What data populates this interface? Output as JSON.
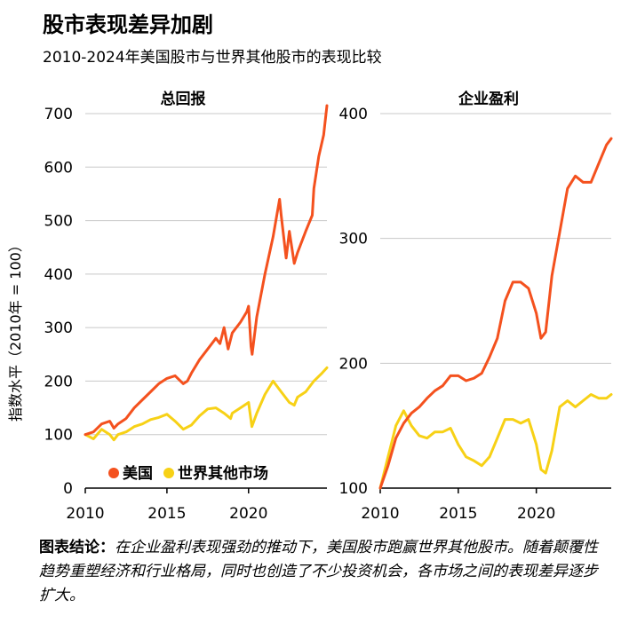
{
  "title": "股市表现差异加剧",
  "subtitle": "2010-2024年美国股市与世界其他股市的表现比较",
  "y_axis_label": "指数水平（2010年 = 100）",
  "legend": [
    {
      "label": "美国",
      "color": "#f4511e"
    },
    {
      "label": "世界其他市场",
      "color": "#f7d116"
    }
  ],
  "conclusion": {
    "lead": "图表结论：",
    "text": "在企业盈利表现强劲的推动下，美国股市跑赢世界其他股市。随着颠覆性趋势重塑经济和行业格局，同时也创造了不少投资机会，各市场之间的表现差异逐步扩大。"
  },
  "colors": {
    "us": "#f4511e",
    "world": "#f7d116",
    "grid": "#c8c8c8",
    "axis": "#000000"
  },
  "chart_data": [
    {
      "type": "line",
      "title": "总回报",
      "ylim": [
        0,
        700
      ],
      "yticks": [
        0,
        100,
        200,
        300,
        400,
        500,
        600,
        700
      ],
      "xlim": [
        2010,
        2024.8
      ],
      "xticks": [
        2010,
        2015,
        2020
      ],
      "grid": true,
      "legend_position": "bottom-left",
      "series": [
        {
          "name": "美国",
          "color": "#f4511e",
          "x": [
            2010,
            2010.5,
            2011,
            2011.5,
            2011.75,
            2012,
            2012.5,
            2013,
            2013.5,
            2014,
            2014.5,
            2015,
            2015.5,
            2016,
            2016.25,
            2016.5,
            2017,
            2017.5,
            2018,
            2018.25,
            2018.5,
            2018.75,
            2019,
            2019.5,
            2019.9,
            2020,
            2020.15,
            2020.22,
            2020.5,
            2021,
            2021.5,
            2021.9,
            2022,
            2022.3,
            2022.5,
            2022.8,
            2023,
            2023.5,
            2023.9,
            2024,
            2024.3,
            2024.6,
            2024.8
          ],
          "values": [
            100,
            105,
            120,
            125,
            112,
            120,
            130,
            150,
            165,
            180,
            195,
            205,
            210,
            195,
            200,
            215,
            240,
            260,
            280,
            270,
            300,
            260,
            290,
            310,
            330,
            340,
            265,
            250,
            320,
            400,
            470,
            540,
            510,
            430,
            480,
            420,
            440,
            480,
            510,
            560,
            620,
            660,
            715
          ]
        },
        {
          "name": "世界其他市场",
          "color": "#f7d116",
          "x": [
            2010,
            2010.5,
            2011,
            2011.5,
            2011.75,
            2012,
            2012.5,
            2013,
            2013.5,
            2014,
            2014.5,
            2015,
            2015.5,
            2016,
            2016.5,
            2017,
            2017.5,
            2018,
            2018.5,
            2018.9,
            2019,
            2019.5,
            2020,
            2020.2,
            2020.5,
            2021,
            2021.5,
            2022,
            2022.5,
            2022.8,
            2023,
            2023.5,
            2024,
            2024.5,
            2024.8
          ],
          "values": [
            100,
            92,
            110,
            100,
            90,
            100,
            105,
            115,
            120,
            128,
            132,
            138,
            125,
            110,
            118,
            135,
            148,
            150,
            140,
            130,
            140,
            150,
            160,
            115,
            140,
            175,
            200,
            180,
            160,
            155,
            170,
            180,
            200,
            215,
            225
          ]
        }
      ]
    },
    {
      "type": "line",
      "title": "企业盈利",
      "ylim": [
        100,
        400
      ],
      "yticks": [
        100,
        200,
        300,
        400
      ],
      "xlim": [
        2010,
        2024.8
      ],
      "xticks": [
        2010,
        2015,
        2020
      ],
      "grid": true,
      "series": [
        {
          "name": "美国",
          "color": "#f4511e",
          "x": [
            2010,
            2010.5,
            2011,
            2011.5,
            2012,
            2012.5,
            2013,
            2013.5,
            2014,
            2014.5,
            2015,
            2015.5,
            2016,
            2016.5,
            2017,
            2017.5,
            2018,
            2018.5,
            2019,
            2019.5,
            2020,
            2020.3,
            2020.6,
            2021,
            2021.5,
            2022,
            2022.5,
            2023,
            2023.5,
            2024,
            2024.5,
            2024.8
          ],
          "values": [
            100,
            118,
            140,
            152,
            160,
            165,
            172,
            178,
            182,
            190,
            190,
            186,
            188,
            192,
            205,
            220,
            250,
            265,
            265,
            260,
            240,
            220,
            225,
            270,
            305,
            340,
            350,
            345,
            345,
            360,
            375,
            380
          ]
        },
        {
          "name": "世界其他市场",
          "color": "#f7d116",
          "x": [
            2010,
            2010.5,
            2011,
            2011.5,
            2012,
            2012.5,
            2013,
            2013.5,
            2014,
            2014.5,
            2015,
            2015.5,
            2016,
            2016.5,
            2017,
            2017.5,
            2018,
            2018.5,
            2019,
            2019.5,
            2020,
            2020.3,
            2020.6,
            2021,
            2021.5,
            2022,
            2022.5,
            2023,
            2023.5,
            2024,
            2024.5,
            2024.8
          ],
          "values": [
            100,
            125,
            150,
            162,
            150,
            142,
            140,
            145,
            145,
            148,
            135,
            125,
            122,
            118,
            125,
            140,
            155,
            155,
            152,
            155,
            135,
            115,
            112,
            130,
            165,
            170,
            165,
            170,
            175,
            172,
            172,
            175
          ]
        }
      ]
    }
  ]
}
